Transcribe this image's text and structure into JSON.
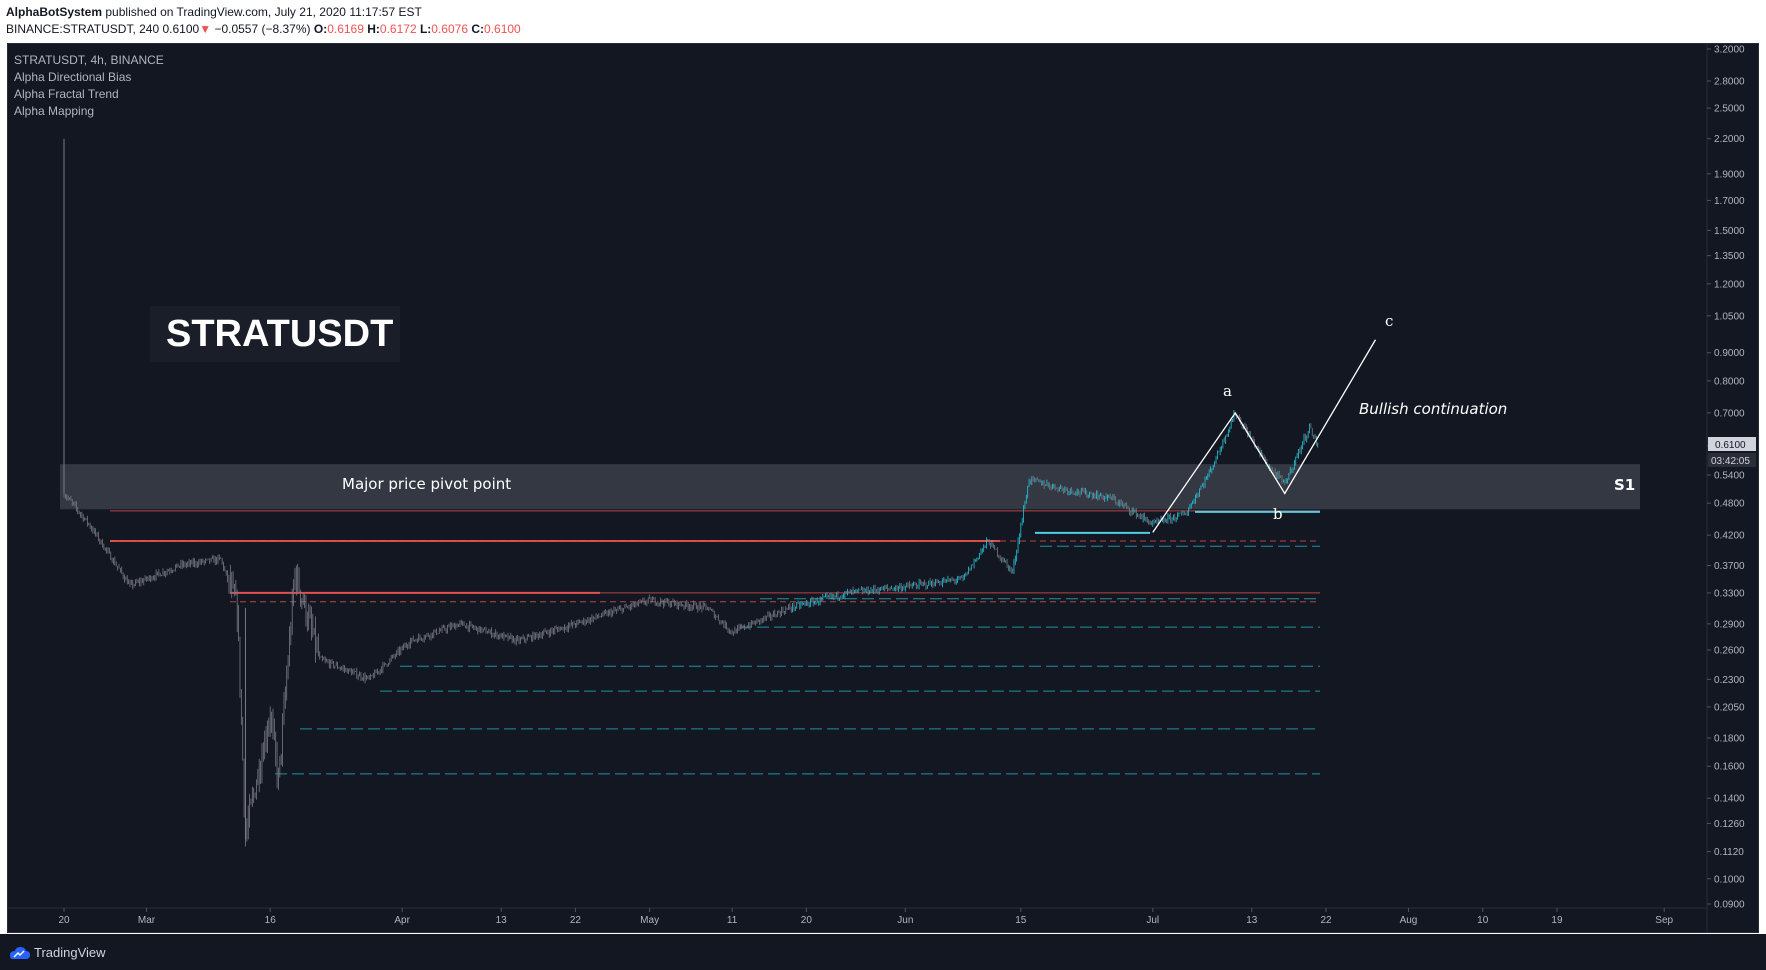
{
  "header": {
    "publisher": "AlphaBotSystem",
    "published_text": "published on TradingView.com, July 21, 2020 11:17:57 EST",
    "symbol_line": "BINANCE:STRATUSDT, 240",
    "price": "0.6100",
    "arrow": "▼",
    "change": "−0.0557 (−8.37%)",
    "o_label": "O:",
    "o_value": "0.6169",
    "h_label": "H:",
    "h_value": "0.6172",
    "l_label": "L:",
    "l_value": "0.6076",
    "c_label": "C:",
    "c_value": "0.6100"
  },
  "legend": {
    "symbol": "STRATUSDT, 4h, BINANCE",
    "indicators": [
      "Alpha Directional Bias",
      "Alpha Fractal Trend",
      "Alpha Mapping"
    ]
  },
  "footer": {
    "brand": "TradingView"
  },
  "colors": {
    "background": "#131722",
    "candle": "#787b86",
    "bullish_candle": "#26c6da",
    "resistance": "#ef5350",
    "support": "#26c6da",
    "pivot_zone": "#3a3e48",
    "annotation": "#ffffff"
  },
  "chart_data": {
    "type": "candlestick",
    "title": "STRATUSDT",
    "y_scale": "log",
    "ylim": [
      0.085,
      3.3
    ],
    "y_ticks": [
      "3.2000",
      "2.8000",
      "2.5000",
      "2.2000",
      "1.9000",
      "1.7000",
      "1.5000",
      "1.3500",
      "1.2000",
      "1.0500",
      "0.9000",
      "0.8000",
      "0.7000",
      "0.6100",
      "0.5400",
      "0.4800",
      "0.4200",
      "0.3700",
      "0.3300",
      "0.2900",
      "0.2600",
      "0.2300",
      "0.2050",
      "0.1800",
      "0.1600",
      "0.1400",
      "0.1260",
      "0.1120",
      "0.1000",
      "0.0900"
    ],
    "current_price": "0.6100",
    "countdown": "03:42:05",
    "x_ticks": [
      "20",
      "Mar",
      "16",
      "Apr",
      "13",
      "22",
      "May",
      "11",
      "20",
      "Jun",
      "15",
      "Jul",
      "13",
      "22",
      "Aug",
      "10",
      "19",
      "Sep"
    ],
    "price_path": [
      [
        "Feb 20",
        0.5
      ],
      [
        "Feb 23",
        0.44
      ],
      [
        "Feb 28",
        0.34
      ],
      [
        "Mar 5",
        0.37
      ],
      [
        "Mar 10",
        0.38
      ],
      [
        "Mar 12",
        0.31
      ],
      [
        "Mar 13",
        0.12
      ],
      [
        "Mar 16",
        0.2
      ],
      [
        "Mar 17",
        0.15
      ],
      [
        "Mar 19",
        0.36
      ],
      [
        "Mar 22",
        0.25
      ],
      [
        "Mar 28",
        0.23
      ],
      [
        "Apr 2",
        0.27
      ],
      [
        "Apr 8",
        0.29
      ],
      [
        "Apr 15",
        0.27
      ],
      [
        "Apr 22",
        0.29
      ],
      [
        "May 1",
        0.32
      ],
      [
        "May 8",
        0.31
      ],
      [
        "May 11",
        0.28
      ],
      [
        "May 18",
        0.31
      ],
      [
        "May 25",
        0.33
      ],
      [
        "Jun 2",
        0.34
      ],
      [
        "Jun 8",
        0.35
      ],
      [
        "Jun 11",
        0.41
      ],
      [
        "Jun 14",
        0.36
      ],
      [
        "Jun 16",
        0.53
      ],
      [
        "Jun 20",
        0.51
      ],
      [
        "Jun 26",
        0.49
      ],
      [
        "Jul 1",
        0.44
      ],
      [
        "Jul 5",
        0.46
      ],
      [
        "Jul 8",
        0.55
      ],
      [
        "Jul 11",
        0.7
      ],
      [
        "Jul 15",
        0.56
      ],
      [
        "Jul 17",
        0.52
      ],
      [
        "Jul 20",
        0.66
      ],
      [
        "Jul 21",
        0.61
      ]
    ],
    "pivot_zone": {
      "label": "Major price pivot point",
      "tag": "S1",
      "low": 0.468,
      "high": 0.565
    },
    "resistance_levels": [
      0.465,
      0.41,
      0.33,
      0.318
    ],
    "support_levels": [
      0.401,
      0.322,
      0.286,
      0.243,
      0.219,
      0.187,
      0.155
    ],
    "wave_labels": {
      "a": "a",
      "b": "b",
      "c": "c"
    },
    "wave_points": [
      [
        "Jul 1",
        0.425
      ],
      [
        "Jul 11",
        0.7
      ],
      [
        "Jul 17",
        0.5
      ],
      [
        "Jul 28",
        0.95
      ]
    ],
    "annotation": "Bullish continuation"
  }
}
